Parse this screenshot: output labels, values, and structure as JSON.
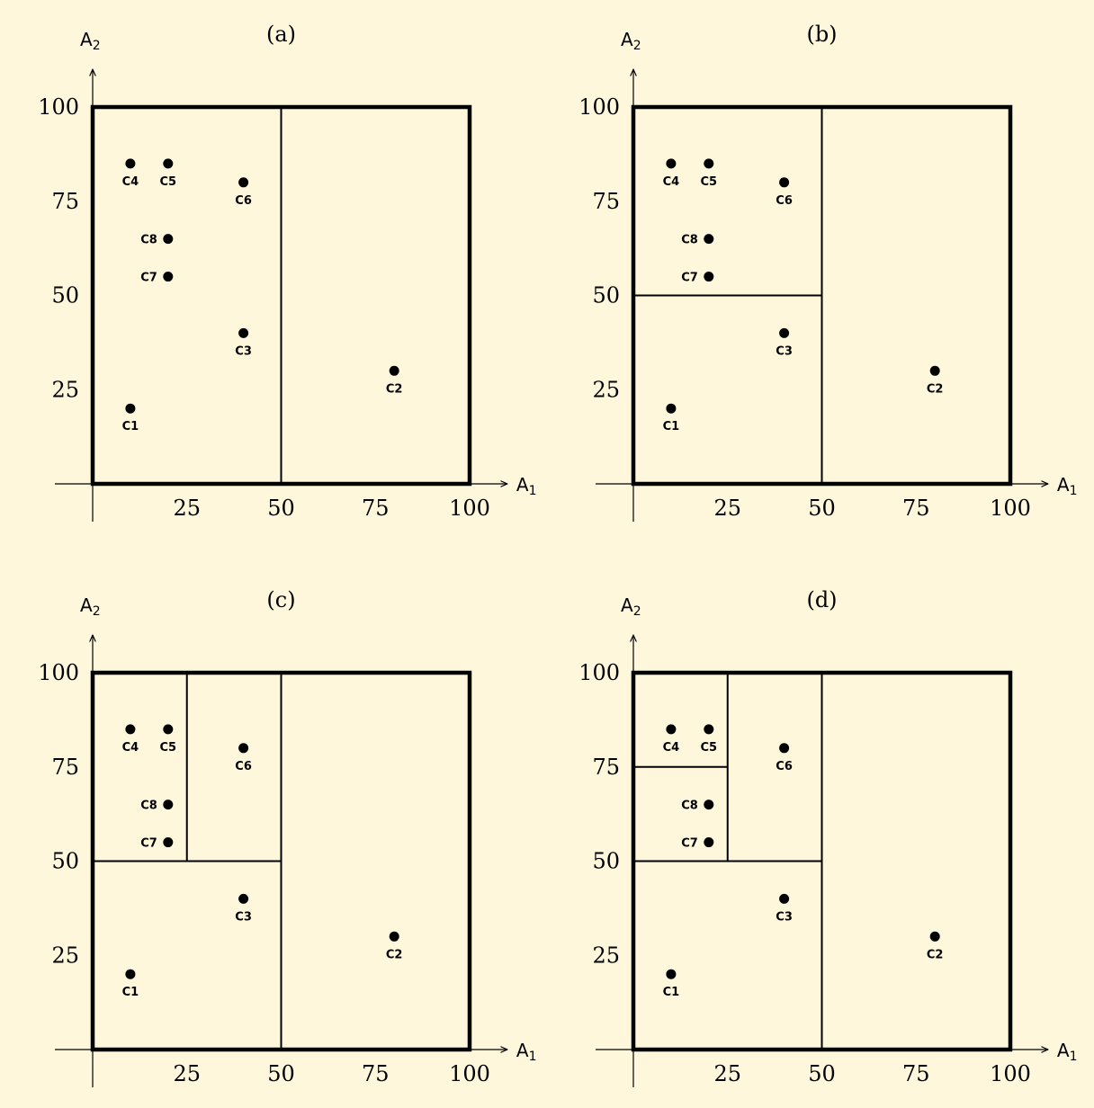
{
  "axes": {
    "x_label": {
      "base": "A",
      "sub": "1"
    },
    "y_label": {
      "base": "A",
      "sub": "2"
    },
    "x_ticks": [
      "25",
      "50",
      "75",
      "100"
    ],
    "y_ticks": [
      "25",
      "50",
      "75",
      "100"
    ],
    "x_tick_values": [
      25,
      50,
      75,
      100
    ],
    "y_tick_values": [
      25,
      50,
      75,
      100
    ],
    "range": [
      0,
      100
    ]
  },
  "points": [
    {
      "label": "C1",
      "x": 10,
      "y": 20,
      "label_pos": "below"
    },
    {
      "label": "C2",
      "x": 80,
      "y": 30,
      "label_pos": "below"
    },
    {
      "label": "C3",
      "x": 40,
      "y": 40,
      "label_pos": "below"
    },
    {
      "label": "C4",
      "x": 10,
      "y": 85,
      "label_pos": "below"
    },
    {
      "label": "C5",
      "x": 20,
      "y": 85,
      "label_pos": "below"
    },
    {
      "label": "C6",
      "x": 40,
      "y": 80,
      "label_pos": "below"
    },
    {
      "label": "C7",
      "x": 20,
      "y": 55,
      "label_pos": "left"
    },
    {
      "label": "C8",
      "x": 20,
      "y": 65,
      "label_pos": "left"
    }
  ],
  "panels": [
    {
      "id": "a",
      "title": "(a)",
      "splits": [
        {
          "x1": 50,
          "y1": 0,
          "x2": 50,
          "y2": 100
        }
      ]
    },
    {
      "id": "b",
      "title": "(b)",
      "splits": [
        {
          "x1": 50,
          "y1": 0,
          "x2": 50,
          "y2": 100
        },
        {
          "x1": 0,
          "y1": 50,
          "x2": 50,
          "y2": 50
        }
      ]
    },
    {
      "id": "c",
      "title": "(c)",
      "splits": [
        {
          "x1": 50,
          "y1": 0,
          "x2": 50,
          "y2": 100
        },
        {
          "x1": 0,
          "y1": 50,
          "x2": 50,
          "y2": 50
        },
        {
          "x1": 25,
          "y1": 50,
          "x2": 25,
          "y2": 100
        }
      ]
    },
    {
      "id": "d",
      "title": "(d)",
      "splits": [
        {
          "x1": 50,
          "y1": 0,
          "x2": 50,
          "y2": 100
        },
        {
          "x1": 0,
          "y1": 50,
          "x2": 50,
          "y2": 50
        },
        {
          "x1": 25,
          "y1": 50,
          "x2": 25,
          "y2": 100
        },
        {
          "x1": 0,
          "y1": 75,
          "x2": 25,
          "y2": 75
        }
      ]
    }
  ]
}
